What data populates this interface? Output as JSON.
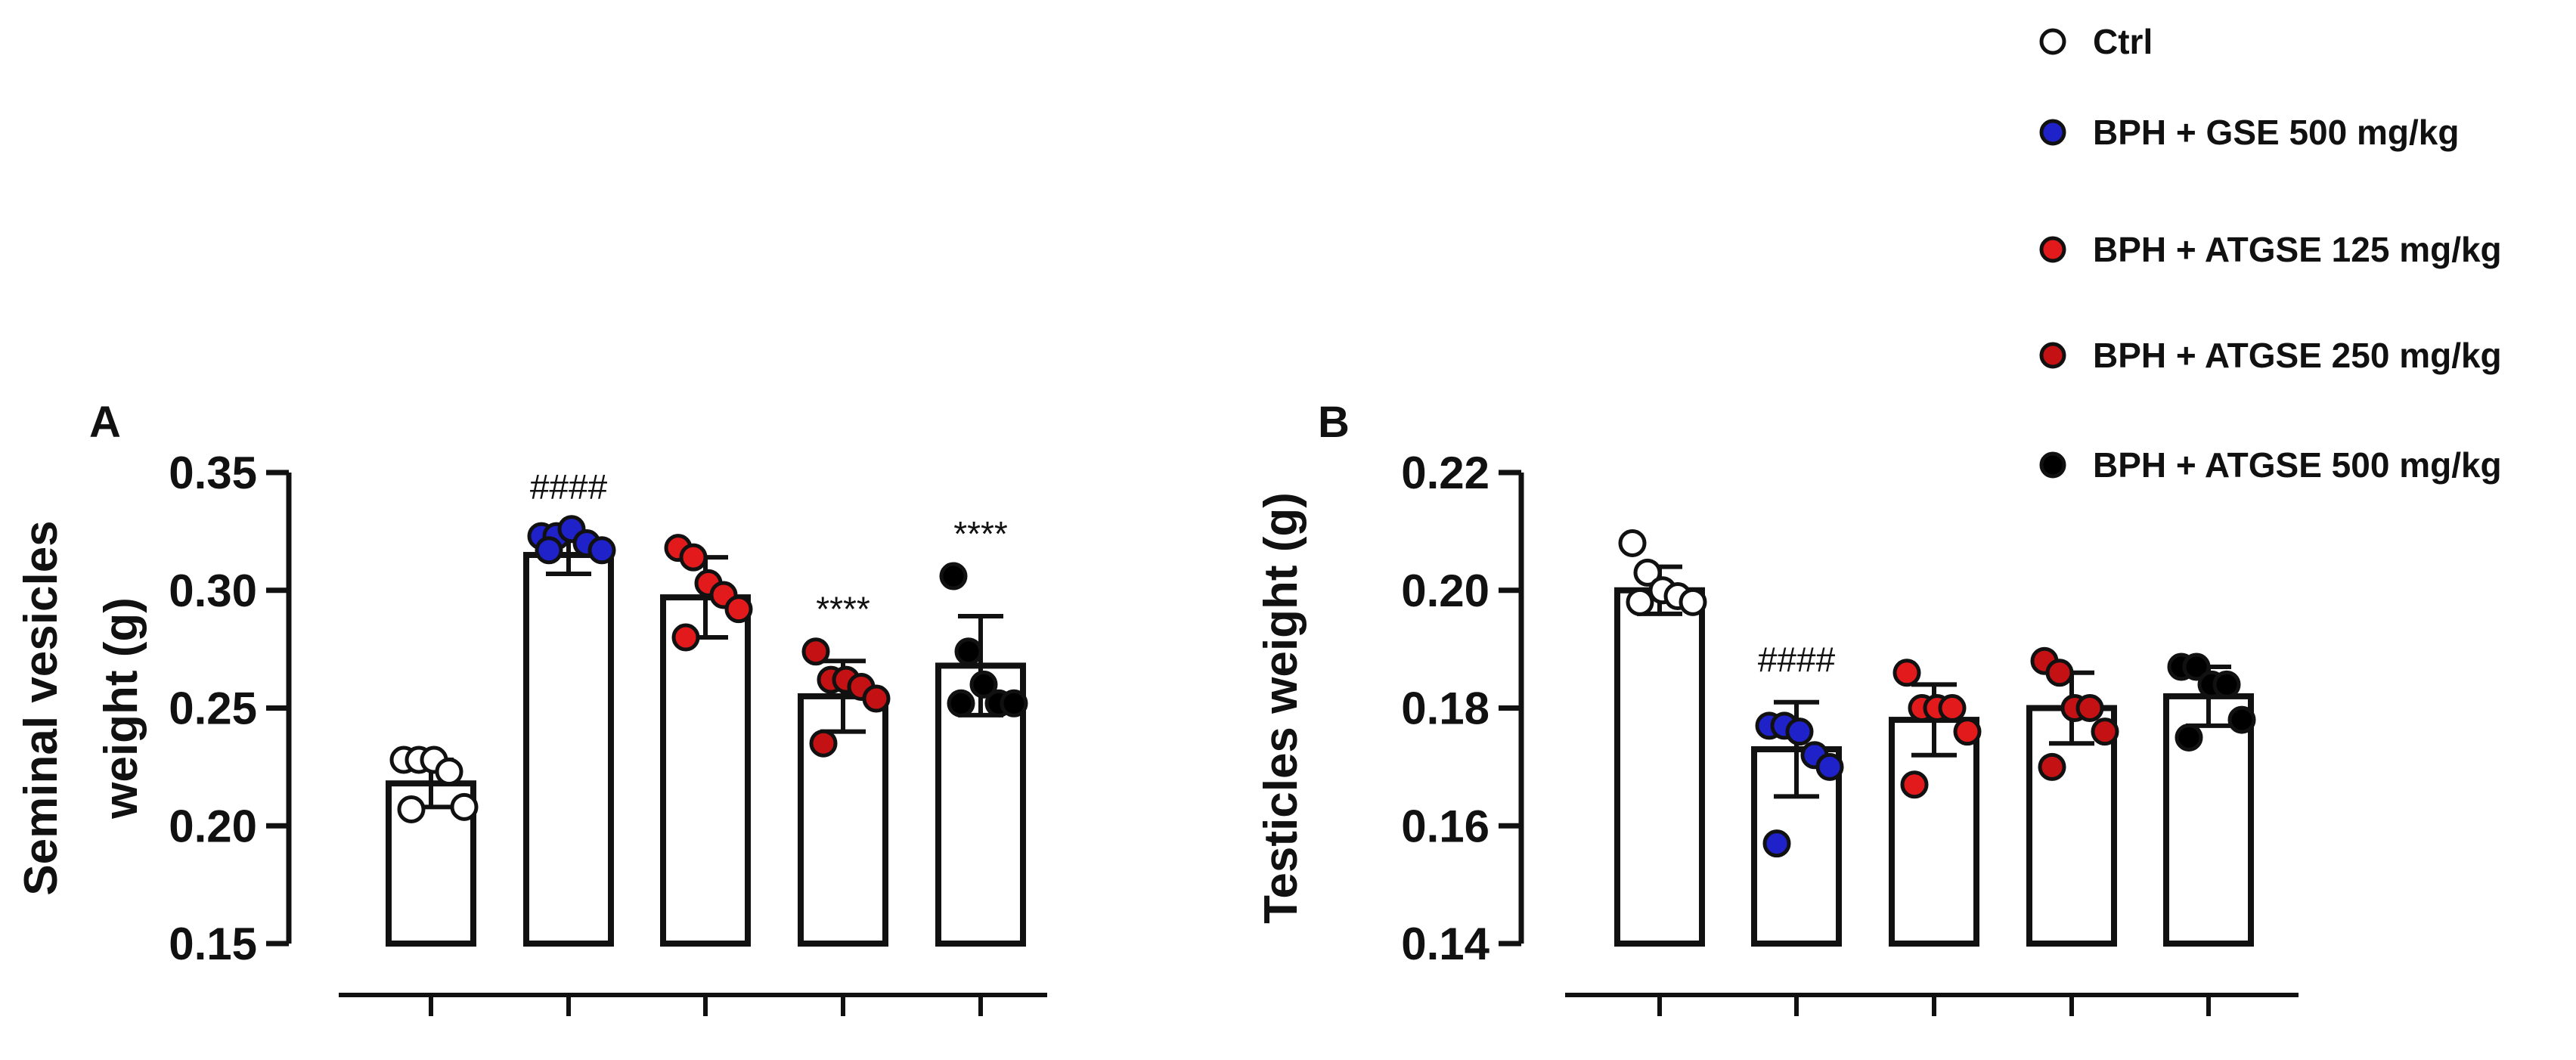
{
  "legend": [
    {
      "label": "Ctrl",
      "color": "#ffffff"
    },
    {
      "label": "BPH + GSE 500 mg/kg",
      "color": "#1f22c8"
    },
    {
      "label": "BPH + ATGSE 125 mg/kg",
      "color": "#e31a1c"
    },
    {
      "label": "BPH + ATGSE 250 mg/kg",
      "color": "#c41214"
    },
    {
      "label": "BPH + ATGSE 500 mg/kg",
      "color": "#000000"
    }
  ],
  "chart_data": [
    {
      "type": "bar",
      "panel": "A",
      "ylabel_lines": [
        "Seminal vesicles",
        "weight (g)"
      ],
      "ylim": [
        0.15,
        0.35
      ],
      "yticks": [
        0.15,
        0.2,
        0.25,
        0.3,
        0.35
      ],
      "ytick_labels": [
        "0.15",
        "0.20",
        "0.25",
        "0.30",
        "0.35"
      ],
      "categories": [
        "Ctrl",
        "BPH + GSE 500 mg/kg",
        "BPH + ATGSE 125 mg/kg",
        "BPH + ATGSE 250 mg/kg",
        "BPH + ATGSE 500 mg/kg"
      ],
      "values": [
        0.218,
        0.315,
        0.297,
        0.255,
        0.268
      ],
      "errors": [
        0.01,
        0.008,
        0.017,
        0.015,
        0.021
      ],
      "points": [
        [
          0.228,
          0.228,
          0.228,
          0.223,
          0.208,
          0.207
        ],
        [
          0.323,
          0.323,
          0.326,
          0.32,
          0.317,
          0.317
        ],
        [
          0.318,
          0.314,
          0.303,
          0.298,
          0.292,
          0.28
        ],
        [
          0.274,
          0.262,
          0.262,
          0.259,
          0.254,
          0.235
        ],
        [
          0.306,
          0.274,
          0.26,
          0.252,
          0.252,
          0.252
        ]
      ],
      "annotations": [
        "",
        "####",
        "",
        "****",
        "****"
      ]
    },
    {
      "type": "bar",
      "panel": "B",
      "ylabel_lines": [
        "Testicles weight (g)"
      ],
      "ylim": [
        0.14,
        0.22
      ],
      "yticks": [
        0.14,
        0.16,
        0.18,
        0.2,
        0.22
      ],
      "ytick_labels": [
        "0.14",
        "0.16",
        "0.18",
        "0.20",
        "0.22"
      ],
      "categories": [
        "Ctrl",
        "BPH + GSE 500 mg/kg",
        "BPH + ATGSE 125 mg/kg",
        "BPH + ATGSE 250 mg/kg",
        "BPH + ATGSE 500 mg/kg"
      ],
      "values": [
        0.2,
        0.173,
        0.178,
        0.18,
        0.182
      ],
      "errors": [
        0.004,
        0.008,
        0.006,
        0.006,
        0.005
      ],
      "points": [
        [
          0.208,
          0.203,
          0.2,
          0.199,
          0.198,
          0.198
        ],
        [
          0.177,
          0.177,
          0.176,
          0.172,
          0.17,
          0.157
        ],
        [
          0.186,
          0.18,
          0.18,
          0.18,
          0.176,
          0.167
        ],
        [
          0.188,
          0.186,
          0.18,
          0.18,
          0.176,
          0.17
        ],
        [
          0.187,
          0.187,
          0.184,
          0.184,
          0.178,
          0.175
        ]
      ],
      "annotations": [
        "",
        "####",
        "",
        "",
        ""
      ]
    }
  ]
}
